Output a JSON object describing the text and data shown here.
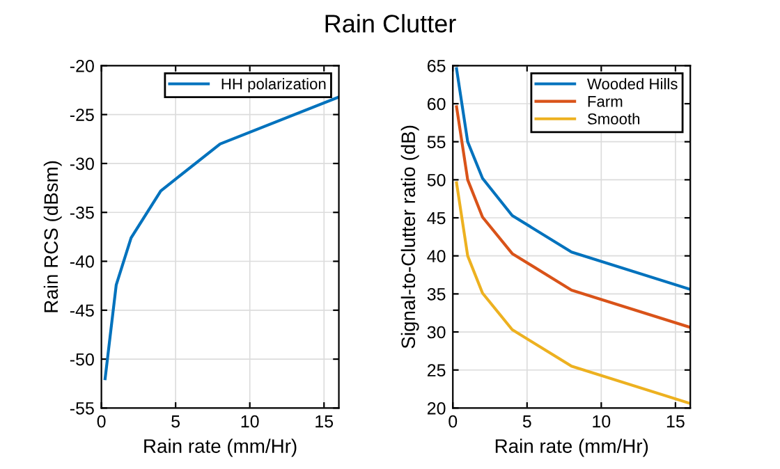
{
  "chart_data": [
    {
      "type": "line",
      "title": "Rain Clutter",
      "xlabel": "Rain rate (mm/Hr)",
      "ylabel": "Rain RCS (dBsm)",
      "x": [
        0.25,
        1,
        2,
        4,
        8,
        16
      ],
      "series": [
        {
          "name": "HH polarization",
          "color": "#0072bd",
          "values": [
            -52,
            -42.4,
            -37.6,
            -32.8,
            -28,
            -23.2
          ]
        }
      ],
      "xlim": [
        0,
        16
      ],
      "xticks": [
        0,
        5,
        10,
        15
      ],
      "ylim": [
        -55,
        -20
      ],
      "yticks": [
        -55,
        -50,
        -45,
        -40,
        -35,
        -30,
        -25,
        -20
      ],
      "grid": true,
      "legend": "top right"
    },
    {
      "type": "line",
      "xlabel": "Rain rate (mm/Hr)",
      "ylabel": "Signal-to-Clutter ratio (dB)",
      "x": [
        0.25,
        1,
        2,
        4,
        8,
        16
      ],
      "series": [
        {
          "name": "Wooded Hills",
          "color": "#0072bd",
          "values": [
            64.6,
            55,
            50.2,
            45.3,
            40.5,
            35.6
          ]
        },
        {
          "name": "Farm",
          "color": "#d95319",
          "values": [
            59.6,
            50,
            45.1,
            40.3,
            35.5,
            30.6
          ]
        },
        {
          "name": "Smooth",
          "color": "#edb120",
          "values": [
            49.6,
            40,
            35.1,
            30.3,
            25.5,
            20.6
          ]
        }
      ],
      "xlim": [
        0,
        16
      ],
      "xticks": [
        0,
        5,
        10,
        15
      ],
      "ylim": [
        20,
        65
      ],
      "yticks": [
        20,
        25,
        30,
        35,
        40,
        45,
        50,
        55,
        60,
        65
      ],
      "grid": true,
      "legend": "top right"
    }
  ]
}
